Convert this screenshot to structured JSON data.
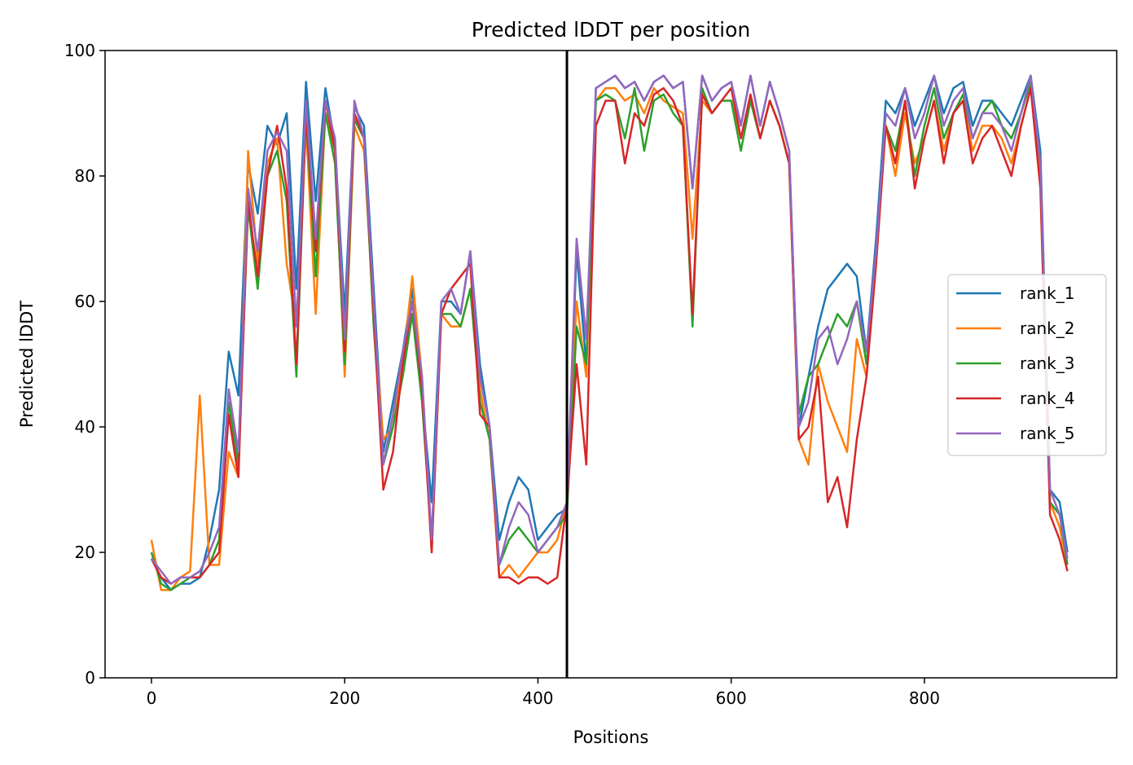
{
  "chart_data": {
    "type": "line",
    "title": "Predicted lDDT per position",
    "xlabel": "Positions",
    "ylabel": "Predicted lDDT",
    "xlim": [
      -48,
      999
    ],
    "ylim": [
      0,
      100
    ],
    "xticks": [
      0,
      200,
      400,
      600,
      800
    ],
    "yticks": [
      0,
      20,
      40,
      60,
      80,
      100
    ],
    "grid": false,
    "legend_position": "center-right",
    "vline": {
      "x": 430,
      "color": "#000000"
    },
    "x": [
      0,
      10,
      20,
      30,
      40,
      50,
      60,
      70,
      80,
      90,
      100,
      110,
      120,
      130,
      140,
      150,
      160,
      170,
      180,
      190,
      200,
      210,
      220,
      230,
      240,
      250,
      260,
      270,
      280,
      290,
      300,
      310,
      320,
      330,
      340,
      350,
      360,
      370,
      380,
      390,
      400,
      410,
      420,
      430,
      440,
      450,
      460,
      470,
      480,
      490,
      500,
      510,
      520,
      530,
      540,
      550,
      560,
      570,
      580,
      590,
      600,
      610,
      620,
      630,
      640,
      650,
      660,
      670,
      680,
      690,
      700,
      710,
      720,
      730,
      740,
      750,
      760,
      770,
      780,
      790,
      800,
      810,
      820,
      830,
      840,
      850,
      860,
      870,
      880,
      890,
      900,
      910,
      920,
      930,
      940,
      948
    ],
    "series": [
      {
        "name": "rank_1",
        "color": "#1f77b4",
        "values": [
          19,
          16,
          14,
          15,
          15,
          16,
          22,
          30,
          52,
          45,
          82,
          74,
          88,
          85,
          90,
          62,
          95,
          76,
          94,
          85,
          58,
          91,
          88,
          62,
          36,
          44,
          52,
          62,
          45,
          28,
          60,
          60,
          58,
          68,
          50,
          40,
          22,
          28,
          32,
          30,
          22,
          24,
          26,
          27,
          68,
          50,
          94,
          95,
          96,
          94,
          95,
          92,
          95,
          96,
          94,
          95,
          78,
          96,
          92,
          94,
          95,
          88,
          96,
          88,
          95,
          90,
          84,
          40,
          48,
          56,
          62,
          64,
          66,
          64,
          52,
          70,
          92,
          90,
          94,
          88,
          92,
          96,
          90,
          94,
          95,
          88,
          92,
          92,
          90,
          88,
          92,
          96,
          84,
          30,
          28,
          20
        ]
      },
      {
        "name": "rank_2",
        "color": "#ff7f0e",
        "values": [
          22,
          14,
          14,
          16,
          17,
          45,
          18,
          18,
          36,
          32,
          84,
          66,
          82,
          86,
          66,
          56,
          88,
          58,
          90,
          84,
          48,
          88,
          84,
          58,
          38,
          40,
          50,
          64,
          48,
          20,
          58,
          56,
          56,
          62,
          46,
          38,
          16,
          18,
          16,
          18,
          20,
          20,
          22,
          28,
          60,
          48,
          92,
          94,
          94,
          92,
          93,
          90,
          94,
          92,
          91,
          90,
          70,
          92,
          90,
          92,
          92,
          86,
          92,
          86,
          92,
          88,
          82,
          38,
          34,
          50,
          44,
          40,
          36,
          54,
          48,
          66,
          88,
          80,
          90,
          82,
          86,
          92,
          84,
          90,
          92,
          84,
          88,
          88,
          86,
          82,
          88,
          94,
          80,
          28,
          24,
          18
        ]
      },
      {
        "name": "rank_3",
        "color": "#2ca02c",
        "values": [
          20,
          15,
          14,
          15,
          16,
          16,
          18,
          22,
          44,
          34,
          75,
          62,
          80,
          84,
          76,
          48,
          90,
          64,
          90,
          82,
          50,
          89,
          86,
          56,
          34,
          40,
          48,
          58,
          44,
          22,
          58,
          58,
          56,
          62,
          44,
          38,
          18,
          22,
          24,
          22,
          20,
          22,
          24,
          26,
          56,
          50,
          92,
          93,
          92,
          86,
          94,
          84,
          92,
          93,
          90,
          88,
          56,
          94,
          90,
          92,
          92,
          84,
          92,
          86,
          92,
          88,
          82,
          42,
          48,
          50,
          54,
          58,
          56,
          60,
          50,
          68,
          88,
          84,
          92,
          80,
          88,
          94,
          86,
          90,
          93,
          86,
          90,
          92,
          88,
          86,
          90,
          95,
          82,
          28,
          26,
          18
        ]
      },
      {
        "name": "rank_4",
        "color": "#d62728",
        "values": [
          19,
          16,
          15,
          16,
          16,
          16,
          18,
          20,
          42,
          32,
          76,
          64,
          80,
          88,
          78,
          50,
          90,
          68,
          92,
          84,
          52,
          90,
          86,
          58,
          30,
          36,
          50,
          60,
          46,
          20,
          58,
          62,
          64,
          66,
          42,
          40,
          16,
          16,
          15,
          16,
          16,
          15,
          16,
          28,
          50,
          34,
          88,
          92,
          92,
          82,
          90,
          88,
          93,
          94,
          92,
          88,
          58,
          93,
          90,
          92,
          94,
          86,
          93,
          86,
          92,
          88,
          82,
          38,
          40,
          48,
          28,
          32,
          24,
          38,
          48,
          66,
          88,
          82,
          92,
          78,
          86,
          92,
          82,
          90,
          92,
          82,
          86,
          88,
          84,
          80,
          88,
          94,
          78,
          26,
          22,
          17
        ]
      },
      {
        "name": "rank_5",
        "color": "#9467bd",
        "values": [
          19,
          17,
          15,
          16,
          16,
          17,
          20,
          24,
          46,
          36,
          78,
          68,
          84,
          87,
          84,
          56,
          92,
          70,
          92,
          86,
          54,
          92,
          86,
          60,
          34,
          42,
          52,
          60,
          48,
          22,
          60,
          62,
          58,
          68,
          48,
          40,
          18,
          24,
          28,
          26,
          20,
          22,
          24,
          28,
          70,
          54,
          94,
          95,
          96,
          94,
          95,
          92,
          95,
          96,
          94,
          95,
          78,
          96,
          92,
          94,
          95,
          88,
          96,
          88,
          95,
          90,
          84,
          40,
          44,
          54,
          56,
          50,
          54,
          60,
          52,
          68,
          90,
          88,
          94,
          86,
          90,
          96,
          88,
          92,
          94,
          86,
          90,
          90,
          88,
          84,
          90,
          96,
          82,
          30,
          26,
          19
        ]
      }
    ]
  }
}
